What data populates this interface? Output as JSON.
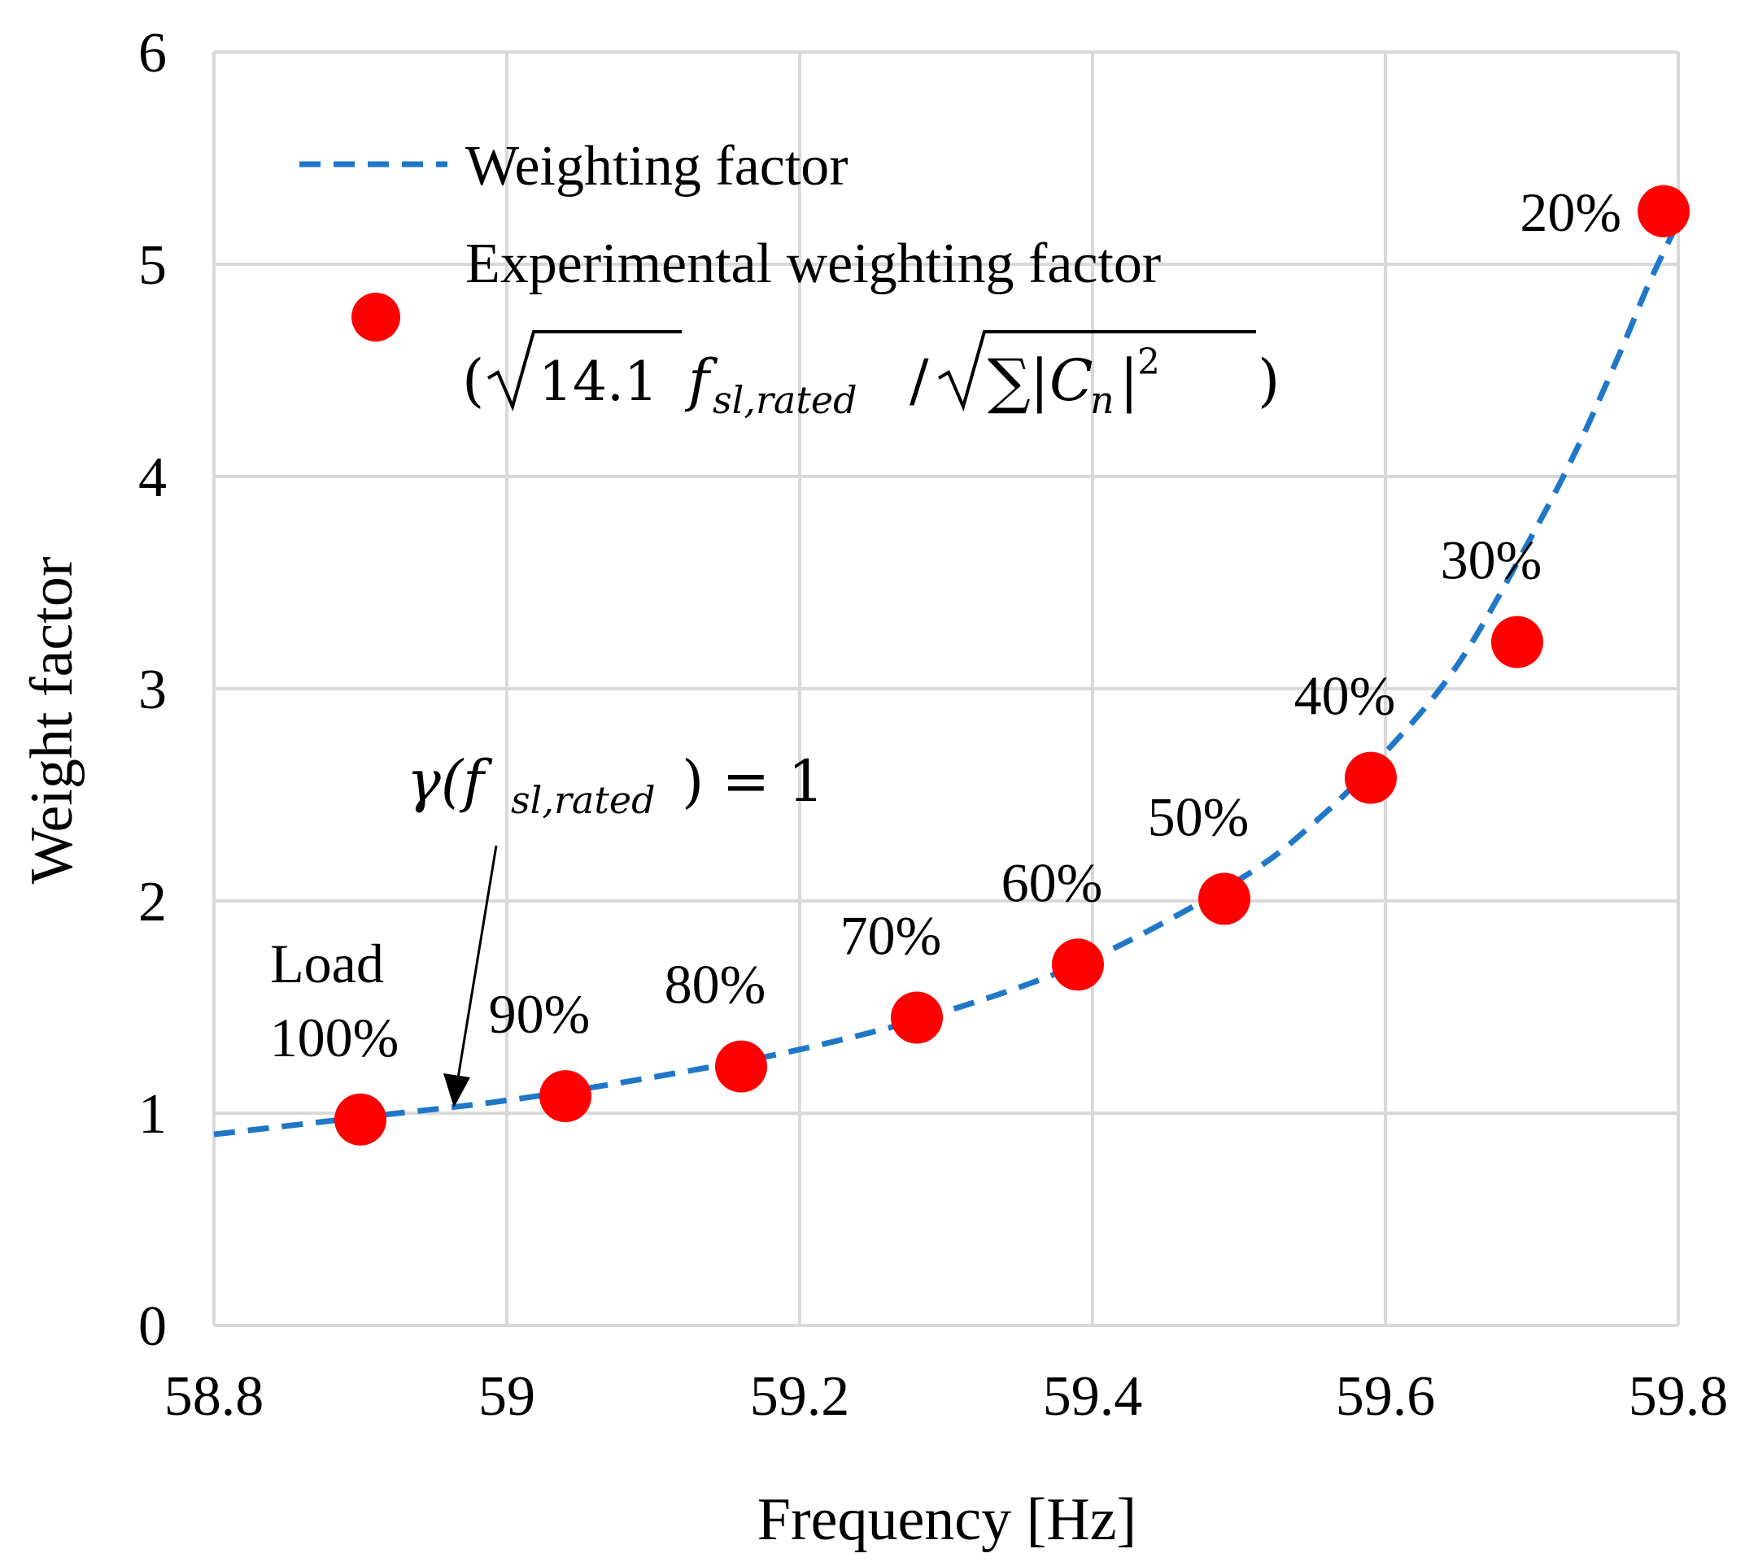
{
  "chart_data": {
    "type": "scatter",
    "xlabel": "Frequency [Hz]",
    "ylabel": "Weight factor",
    "xlim": [
      58.8,
      59.8
    ],
    "ylim": [
      0,
      6
    ],
    "x_ticks": [
      58.8,
      59.0,
      59.2,
      59.4,
      59.6,
      59.8
    ],
    "x_tick_labels": [
      "58.8",
      "59",
      "59.2",
      "59.4",
      "59.6",
      "59.8"
    ],
    "y_ticks": [
      0,
      1,
      2,
      3,
      4,
      5,
      6
    ],
    "y_tick_labels": [
      "0",
      "1",
      "2",
      "3",
      "4",
      "5",
      "6"
    ],
    "grid": true,
    "legend_position": "top-left",
    "series": [
      {
        "name": "Weighting factor",
        "kind": "line",
        "style": "dashed",
        "color": "#1f77c8",
        "x": [
          58.8,
          58.9,
          59.0,
          59.1,
          59.2,
          59.3,
          59.4,
          59.5,
          59.55,
          59.6,
          59.65,
          59.7,
          59.73,
          59.76,
          59.78,
          59.8
        ],
        "y": [
          0.9,
          0.98,
          1.06,
          1.17,
          1.3,
          1.48,
          1.73,
          2.1,
          2.36,
          2.7,
          3.12,
          3.72,
          4.12,
          4.58,
          4.91,
          5.2
        ]
      },
      {
        "name": "Experimental weighting factor",
        "name_formula": "(√14.1 f_sl,rated / √∑|C_n|²)",
        "kind": "scatter",
        "color": "#ff0000",
        "x": [
          58.9,
          59.04,
          59.16,
          59.28,
          59.39,
          59.49,
          59.59,
          59.69,
          59.79
        ],
        "y": [
          0.97,
          1.08,
          1.22,
          1.45,
          1.7,
          2.01,
          2.58,
          3.22,
          5.25
        ],
        "labels": [
          "100%",
          "90%",
          "80%",
          "70%",
          "60%",
          "50%",
          "40%",
          "30%",
          "20%"
        ]
      }
    ],
    "annotations": [
      {
        "text": "Load",
        "near_point": "100%"
      },
      {
        "text": "γ(f_sl,rated) = 1",
        "arrow_to_x": 58.96,
        "arrow_to_y": 1.0
      }
    ]
  },
  "legend": {
    "line_label": "Weighting factor",
    "scatter_label": "Experimental weighting factor",
    "formula": {
      "open": "(",
      "sqrt1_arg": "14.1",
      "f": "f",
      "sub": "sl,rated",
      "slash": "/",
      "sum": "∑",
      "bar": "|",
      "c": "C",
      "c_sub": "n",
      "sq": "2",
      "close": ")"
    }
  },
  "annotation": {
    "load_label": "Load",
    "gamma_prefix": "γ(f",
    "gamma_sub": "sl,rated",
    "gamma_suffix": ") = 1"
  }
}
